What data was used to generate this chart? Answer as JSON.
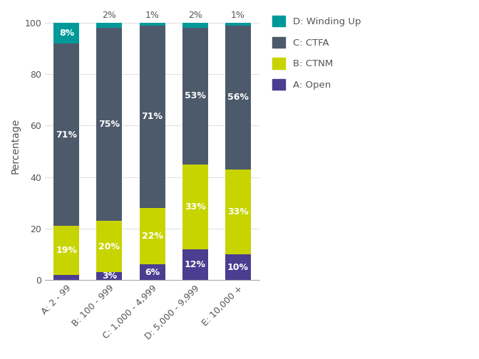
{
  "categories": [
    "A: 2 - 99",
    "B: 100 - 999",
    "C: 1,000 - 4,999",
    "D: 5,000 - 9,999",
    "E: 10,000 +"
  ],
  "segments": {
    "A: Open": [
      2,
      3,
      6,
      12,
      10
    ],
    "B: CTNM": [
      19,
      20,
      22,
      33,
      33
    ],
    "C: CTFA": [
      71,
      75,
      71,
      53,
      56
    ],
    "D: Winding Up": [
      8,
      2,
      1,
      2,
      1
    ]
  },
  "colors": {
    "A: Open": "#4b3d8f",
    "B: CTNM": "#c8d400",
    "C: CTFA": "#4d5a6b",
    "D: Winding Up": "#009999"
  },
  "top_labels": [
    "",
    "2%",
    "1%",
    "2%",
    "1%"
  ],
  "bar_labels": {
    "A: Open": [
      "",
      "3%",
      "6%",
      "12%",
      "10%"
    ],
    "B: CTNM": [
      "19%",
      "20%",
      "22%",
      "33%",
      "33%"
    ],
    "C: CTFA": [
      "71%",
      "75%",
      "71%",
      "53%",
      "56%"
    ],
    "D: Winding Up": [
      "8%",
      "",
      "",
      "",
      ""
    ]
  },
  "ylabel": "Percentage",
  "ylim": [
    0,
    100
  ],
  "background_color": "#ffffff",
  "bar_width": 0.6,
  "legend_order": [
    "D: Winding Up",
    "C: CTFA",
    "B: CTNM",
    "A: Open"
  ]
}
